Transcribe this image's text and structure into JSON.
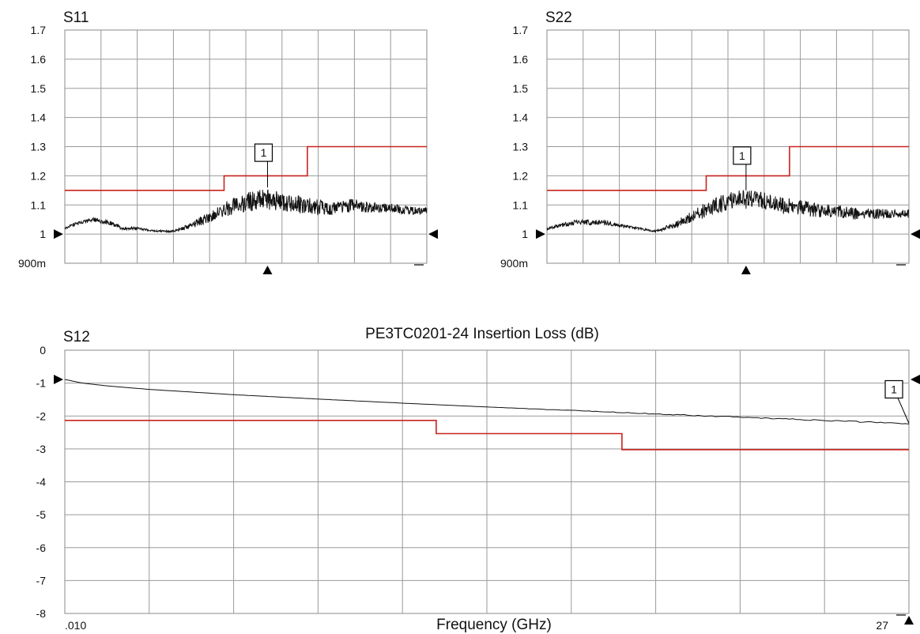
{
  "colors": {
    "measured": "#111111",
    "limit": "#c8231e",
    "grid": "#9a9a9a",
    "background": "#ffffff"
  },
  "chart_data": [
    {
      "id": "s11",
      "type": "line",
      "title": "S11",
      "xlabel": "",
      "ylabel": "",
      "ylim": [
        0.9,
        1.7
      ],
      "y_tick_labels": [
        "900m",
        "1",
        "1.1",
        "1.2",
        "1.3",
        "1.4",
        "1.5",
        "1.6",
        "1.7"
      ],
      "x_grid_divisions": 10,
      "grid": true,
      "marker": {
        "label": "1",
        "x": 0.56,
        "y": 1.16
      },
      "series": [
        {
          "role": "measured",
          "x": [
            0.0,
            0.04,
            0.08,
            0.12,
            0.16,
            0.2,
            0.25,
            0.3,
            0.35,
            0.4,
            0.45,
            0.5,
            0.55,
            0.6,
            0.65,
            0.7,
            0.75,
            0.8,
            0.85,
            0.9,
            0.95,
            1.0
          ],
          "values": [
            1.02,
            1.04,
            1.05,
            1.04,
            1.02,
            1.02,
            1.01,
            1.01,
            1.03,
            1.06,
            1.09,
            1.11,
            1.12,
            1.11,
            1.1,
            1.09,
            1.09,
            1.1,
            1.09,
            1.09,
            1.08,
            1.08
          ],
          "ripple": [
            0.004,
            0.006,
            0.008,
            0.008,
            0.006,
            0.004,
            0.003,
            0.004,
            0.01,
            0.02,
            0.028,
            0.032,
            0.035,
            0.034,
            0.03,
            0.028,
            0.025,
            0.022,
            0.018,
            0.015,
            0.014,
            0.012
          ]
        },
        {
          "role": "limit",
          "x": [
            0.0,
            0.44,
            0.44,
            0.67,
            0.67,
            1.0
          ],
          "values": [
            1.15,
            1.15,
            1.2,
            1.2,
            1.3,
            1.3
          ]
        }
      ]
    },
    {
      "id": "s22",
      "type": "line",
      "title": "S22",
      "xlabel": "",
      "ylabel": "",
      "ylim": [
        0.9,
        1.7
      ],
      "y_tick_labels": [
        "900m",
        "1",
        "1.1",
        "1.2",
        "1.3",
        "1.4",
        "1.5",
        "1.6",
        "1.7"
      ],
      "x_grid_divisions": 10,
      "grid": true,
      "marker": {
        "label": "1",
        "x": 0.55,
        "y": 1.15
      },
      "series": [
        {
          "role": "measured",
          "x": [
            0.0,
            0.04,
            0.08,
            0.12,
            0.16,
            0.2,
            0.25,
            0.3,
            0.35,
            0.4,
            0.45,
            0.5,
            0.55,
            0.6,
            0.65,
            0.7,
            0.75,
            0.8,
            0.85,
            0.9,
            0.95,
            1.0
          ],
          "values": [
            1.02,
            1.03,
            1.04,
            1.04,
            1.04,
            1.03,
            1.02,
            1.01,
            1.03,
            1.06,
            1.09,
            1.11,
            1.12,
            1.11,
            1.1,
            1.09,
            1.08,
            1.08,
            1.07,
            1.07,
            1.07,
            1.07
          ],
          "ripple": [
            0.005,
            0.007,
            0.009,
            0.009,
            0.008,
            0.006,
            0.004,
            0.004,
            0.01,
            0.02,
            0.028,
            0.032,
            0.034,
            0.033,
            0.03,
            0.027,
            0.024,
            0.022,
            0.02,
            0.018,
            0.016,
            0.014
          ]
        },
        {
          "role": "limit",
          "x": [
            0.0,
            0.44,
            0.44,
            0.67,
            0.67,
            1.0
          ],
          "values": [
            1.15,
            1.15,
            1.2,
            1.2,
            1.3,
            1.3
          ]
        }
      ]
    },
    {
      "id": "s12",
      "type": "line",
      "title": "PE3TC0201-24 Insertion Loss (dB)",
      "panel_label": "S12",
      "xlabel": "Frequency (GHz)",
      "ylabel": "",
      "ylim": [
        -8,
        1
      ],
      "y_tick_labels": [
        "-8",
        "-7",
        "-6",
        "-5",
        "-4",
        "-3",
        "-2",
        "-1",
        "0"
      ],
      "x_range_labels": [
        ".010",
        "27"
      ],
      "x_grid_divisions": 10,
      "grid": true,
      "marker": {
        "label": "1",
        "x": 1.0,
        "y": -1.5
      },
      "series": [
        {
          "role": "measured",
          "x": [
            0.0,
            0.02,
            0.05,
            0.1,
            0.2,
            0.3,
            0.4,
            0.5,
            0.6,
            0.7,
            0.8,
            0.9,
            1.0
          ],
          "values": [
            0.0,
            -0.12,
            -0.22,
            -0.34,
            -0.52,
            -0.67,
            -0.81,
            -0.94,
            -1.06,
            -1.18,
            -1.29,
            -1.4,
            -1.51
          ],
          "ripple": [
            0,
            0,
            0,
            0,
            0,
            0,
            0,
            0,
            0.01,
            0.015,
            0.02,
            0.02,
            0.025
          ]
        },
        {
          "role": "limit",
          "x": [
            0.0,
            0.44,
            0.44,
            0.66,
            0.66,
            1.0
          ],
          "values": [
            -1.4,
            -1.4,
            -1.85,
            -1.85,
            -2.4,
            -2.4
          ]
        }
      ]
    }
  ]
}
